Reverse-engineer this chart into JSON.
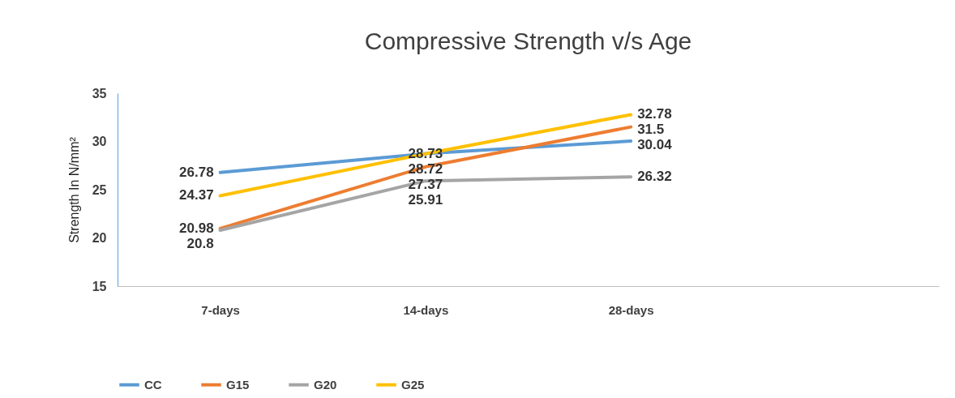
{
  "chart_data": {
    "type": "line",
    "title": "Compressive Strength v/s Age",
    "ylabel": "Strength In N/mm²",
    "categories": [
      "7-days",
      "14-days",
      "28-days",
      null
    ],
    "series": [
      {
        "name": "CC",
        "color": "#5b9bd5",
        "values": [
          26.78,
          28.73,
          30.04,
          null
        ]
      },
      {
        "name": "G15",
        "color": "#ed7d31",
        "values": [
          20.98,
          27.37,
          31.5,
          null
        ]
      },
      {
        "name": "G20",
        "color": "#a5a5a5",
        "values": [
          20.8,
          25.91,
          26.32,
          null
        ]
      },
      {
        "name": "G25",
        "color": "#ffc000",
        "values": [
          24.37,
          28.72,
          32.78,
          null
        ]
      }
    ],
    "ylim": [
      15,
      35
    ],
    "yticks": [
      15,
      20,
      25,
      30,
      35
    ],
    "grid": false,
    "legend": "bottom",
    "data_labels": true,
    "marker": "none",
    "line_style": "solid"
  }
}
